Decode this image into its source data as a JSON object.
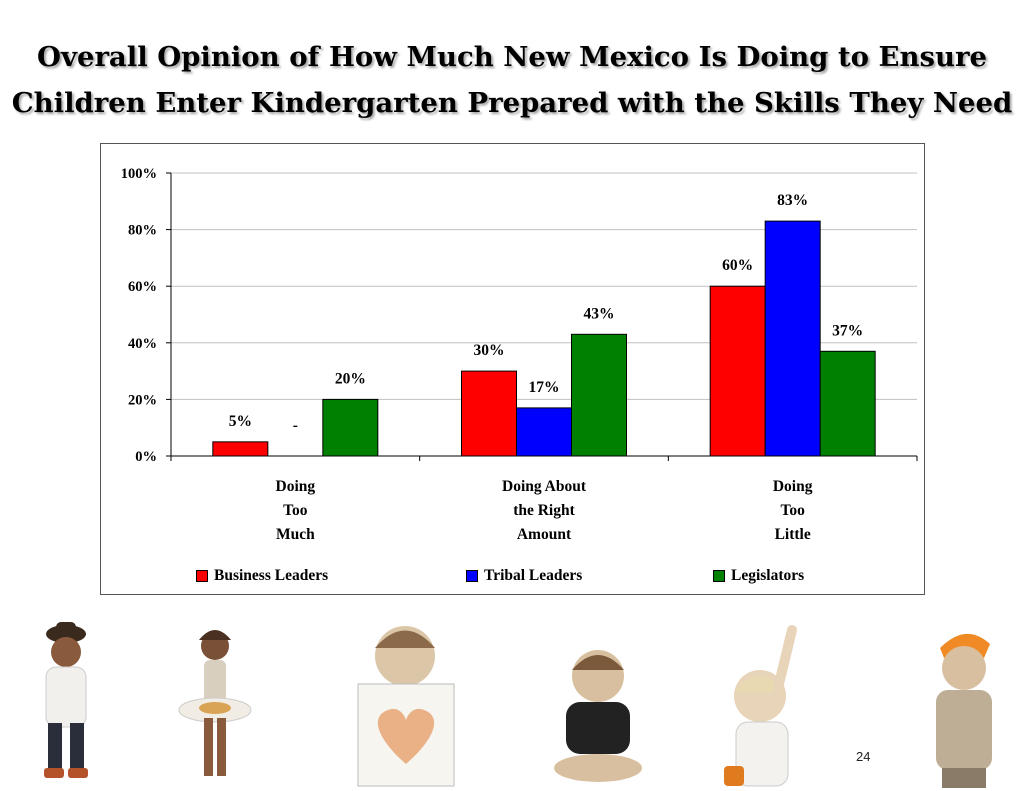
{
  "title": {
    "line1": "Overall Opinion of How Much New Mexico Is Doing to Ensure",
    "line2": "Children Enter Kindergarten Prepared with the Skills They Need"
  },
  "chart_data": {
    "type": "bar",
    "categories": [
      [
        "Doing",
        "Too",
        "Much"
      ],
      [
        "Doing About",
        "the Right",
        "Amount"
      ],
      [
        "Doing",
        "Too",
        "Little"
      ]
    ],
    "series": [
      {
        "name": "Business Leaders",
        "color": "#ff0000",
        "values": [
          5,
          30,
          60
        ],
        "labels": [
          "5%",
          "30%",
          "60%"
        ]
      },
      {
        "name": "Tribal Leaders",
        "color": "#0000ff",
        "values": [
          0,
          17,
          83
        ],
        "labels": [
          "-",
          "17%",
          "83%"
        ]
      },
      {
        "name": "Legislators",
        "color": "#008000",
        "values": [
          20,
          43,
          37
        ],
        "labels": [
          "20%",
          "43%",
          "37%"
        ]
      }
    ],
    "ylim": [
      0,
      100
    ],
    "yticks": [
      "0%",
      "20%",
      "40%",
      "60%",
      "80%",
      "100%"
    ],
    "grid": true,
    "legend_position": "bottom"
  },
  "photos": [
    {
      "name": "child-with-hat",
      "accent": "#3a2a1e"
    },
    {
      "name": "child-with-flower-costume",
      "accent": "#d9a456"
    },
    {
      "name": "child-holding-heart-drawing",
      "accent": "#e6a06b"
    },
    {
      "name": "baby-in-black-shirt",
      "accent": "#222222"
    },
    {
      "name": "child-raising-hand",
      "accent": "#e07a1f"
    },
    {
      "name": "child-with-orange-bandana",
      "accent": "#f08a24"
    }
  ],
  "page_number": "24"
}
